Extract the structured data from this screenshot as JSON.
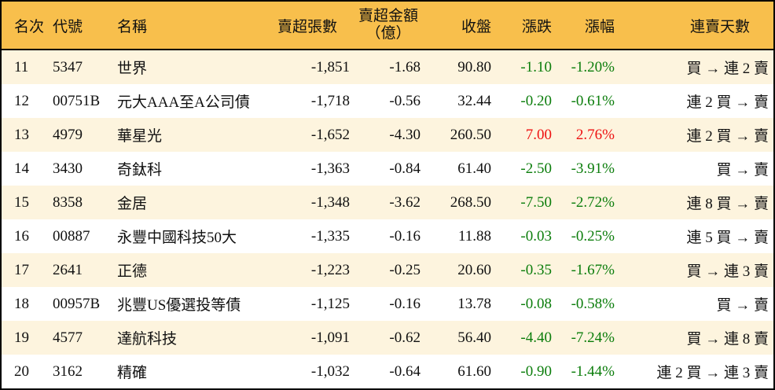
{
  "colors": {
    "header-bg": "#f8bf4c",
    "row-alt-bg": "#fdf4de",
    "row-bg": "#ffffff",
    "down-green": "#0b7d0b",
    "up-red": "#ee1111",
    "border": "#000000"
  },
  "table": {
    "columns": [
      {
        "key": "rank",
        "label": "名次"
      },
      {
        "key": "code",
        "label": "代號"
      },
      {
        "key": "name",
        "label": "名稱"
      },
      {
        "key": "volume",
        "label": "賣超張數"
      },
      {
        "key": "amount",
        "label": "賣超金額",
        "label2": "（億）"
      },
      {
        "key": "close",
        "label": "收盤"
      },
      {
        "key": "change",
        "label": "漲跌"
      },
      {
        "key": "pct",
        "label": "漲幅"
      },
      {
        "key": "days",
        "label": "連賣天數"
      }
    ],
    "rows": [
      {
        "rank": "11",
        "code": "5347",
        "name": "世界",
        "volume": "-1,851",
        "amount": "-1.68",
        "close": "90.80",
        "change": "-1.10",
        "pct": "-1.20%",
        "days": "買 → 連 2 賣",
        "trend": "down"
      },
      {
        "rank": "12",
        "code": "00751B",
        "name": "元大AAA至A公司債",
        "volume": "-1,718",
        "amount": "-0.56",
        "close": "32.44",
        "change": "-0.20",
        "pct": "-0.61%",
        "days": "連 2 買 → 賣",
        "trend": "down"
      },
      {
        "rank": "13",
        "code": "4979",
        "name": "華星光",
        "volume": "-1,652",
        "amount": "-4.30",
        "close": "260.50",
        "change": "7.00",
        "pct": "2.76%",
        "days": "連 2 買 → 賣",
        "trend": "up"
      },
      {
        "rank": "14",
        "code": "3430",
        "name": "奇鈦科",
        "volume": "-1,363",
        "amount": "-0.84",
        "close": "61.40",
        "change": "-2.50",
        "pct": "-3.91%",
        "days": "買 → 賣",
        "trend": "down"
      },
      {
        "rank": "15",
        "code": "8358",
        "name": "金居",
        "volume": "-1,348",
        "amount": "-3.62",
        "close": "268.50",
        "change": "-7.50",
        "pct": "-2.72%",
        "days": "連 8 買 → 賣",
        "trend": "down"
      },
      {
        "rank": "16",
        "code": "00887",
        "name": "永豐中國科技50大",
        "volume": "-1,335",
        "amount": "-0.16",
        "close": "11.88",
        "change": "-0.03",
        "pct": "-0.25%",
        "days": "連 5 買 → 賣",
        "trend": "down"
      },
      {
        "rank": "17",
        "code": "2641",
        "name": "正德",
        "volume": "-1,223",
        "amount": "-0.25",
        "close": "20.60",
        "change": "-0.35",
        "pct": "-1.67%",
        "days": "買 → 連 3 賣",
        "trend": "down"
      },
      {
        "rank": "18",
        "code": "00957B",
        "name": "兆豐US優選投等債",
        "volume": "-1,125",
        "amount": "-0.16",
        "close": "13.78",
        "change": "-0.08",
        "pct": "-0.58%",
        "days": "買 → 賣",
        "trend": "down"
      },
      {
        "rank": "19",
        "code": "4577",
        "name": "達航科技",
        "volume": "-1,091",
        "amount": "-0.62",
        "close": "56.40",
        "change": "-4.40",
        "pct": "-7.24%",
        "days": "買 → 連 8 賣",
        "trend": "down"
      },
      {
        "rank": "20",
        "code": "3162",
        "name": "精確",
        "volume": "-1,032",
        "amount": "-0.64",
        "close": "61.60",
        "change": "-0.90",
        "pct": "-1.44%",
        "days": "連 2 買 → 連 3 賣",
        "trend": "down"
      }
    ]
  }
}
